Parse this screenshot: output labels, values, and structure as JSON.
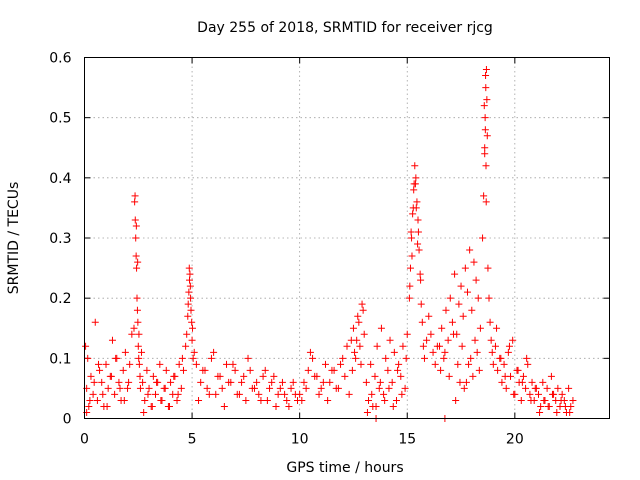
{
  "chart_data": {
    "type": "scatter",
    "title": "Day 255 of 2018, SRMTID for receiver rjcg",
    "xlabel": "GPS time / hours",
    "ylabel": "SRMTID / TECUs",
    "xlim": [
      0,
      24.4
    ],
    "ylim": [
      0,
      0.6
    ],
    "xticks": [
      0,
      5,
      10,
      15,
      20
    ],
    "yticks": [
      0,
      0.1,
      0.2,
      0.3,
      0.4,
      0.5,
      0.6
    ],
    "xtick_labels": [
      "0",
      "5",
      "10",
      "15",
      "20"
    ],
    "ytick_labels": [
      "0",
      "0.1",
      "0.2",
      "0.3",
      "0.4",
      "0.5",
      "0.6"
    ],
    "grid": true,
    "marker": "+",
    "color": "#ff0000",
    "series": [
      {
        "name": "SRMTID",
        "x": [
          0.05,
          0.1,
          0.15,
          0.2,
          0.3,
          0.4,
          0.5,
          0.6,
          0.7,
          0.8,
          0.9,
          1.0,
          1.1,
          1.2,
          1.3,
          1.4,
          1.5,
          1.6,
          1.7,
          1.8,
          1.9,
          2.0,
          2.1,
          2.2,
          0.1,
          0.25,
          0.45,
          0.65,
          0.85,
          1.05,
          1.25,
          1.45,
          1.65,
          1.85,
          2.05,
          2.3,
          2.33,
          2.36,
          2.38,
          2.4,
          2.42,
          2.44,
          2.46,
          2.48,
          2.5,
          2.52,
          2.35,
          2.41,
          2.47,
          2.53,
          2.55,
          2.58,
          2.6,
          2.65,
          2.7,
          2.8,
          2.9,
          3.0,
          3.1,
          3.2,
          3.3,
          3.4,
          3.5,
          3.6,
          3.7,
          3.8,
          3.9,
          4.0,
          4.1,
          4.2,
          4.3,
          4.4,
          4.5,
          4.6,
          2.75,
          2.95,
          3.15,
          3.35,
          3.55,
          3.75,
          3.95,
          4.15,
          4.35,
          4.55,
          4.7,
          4.75,
          4.8,
          4.82,
          4.85,
          4.88,
          4.9,
          4.92,
          4.95,
          4.98,
          5.0,
          5.05,
          4.87,
          4.93,
          5.02,
          5.1,
          5.2,
          5.4,
          5.6,
          5.8,
          6.0,
          6.2,
          6.4,
          6.6,
          6.8,
          7.0,
          7.2,
          7.4,
          7.6,
          7.8,
          8.0,
          8.2,
          8.4,
          8.6,
          8.8,
          9.0,
          9.2,
          9.4,
          9.6,
          9.8,
          5.3,
          5.5,
          5.7,
          5.9,
          6.1,
          6.3,
          6.5,
          6.7,
          6.9,
          7.1,
          7.3,
          7.5,
          7.7,
          7.9,
          8.1,
          8.3,
          8.5,
          8.7,
          8.9,
          9.1,
          9.3,
          9.5,
          9.7,
          9.9,
          10.0,
          10.2,
          10.4,
          10.6,
          10.8,
          11.0,
          11.2,
          11.4,
          11.6,
          11.8,
          12.0,
          12.2,
          10.1,
          10.3,
          10.5,
          10.7,
          10.9,
          11.1,
          11.3,
          11.5,
          11.7,
          11.9,
          12.1,
          12.3,
          12.4,
          12.5,
          12.6,
          12.7,
          12.8,
          12.9,
          13.0,
          12.55,
          12.75,
          12.95,
          12.45,
          12.65,
          12.85,
          13.1,
          13.2,
          13.3,
          13.4,
          13.5,
          13.6,
          13.7,
          13.8,
          13.9,
          14.0,
          14.1,
          14.2,
          14.3,
          14.4,
          14.5,
          14.6,
          14.7,
          14.8,
          14.9,
          13.15,
          13.35,
          13.55,
          13.75,
          13.95,
          14.15,
          14.35,
          14.55,
          14.75,
          14.95,
          15.0,
          15.1,
          15.15,
          15.2,
          15.25,
          15.3,
          15.35,
          15.4,
          15.45,
          15.5,
          15.55,
          15.6,
          15.65,
          15.7,
          15.75,
          15.8,
          15.9,
          16.0,
          16.1,
          16.2,
          16.3,
          16.4,
          15.12,
          15.22,
          15.32,
          15.42,
          15.52,
          15.62,
          15.28,
          15.38,
          15.18,
          15.48,
          16.5,
          16.6,
          16.7,
          16.8,
          16.9,
          17.0,
          17.1,
          17.2,
          17.3,
          17.4,
          17.5,
          17.6,
          17.7,
          17.8,
          17.9,
          18.0,
          18.1,
          18.2,
          18.3,
          18.4,
          16.55,
          16.75,
          16.95,
          17.15,
          17.35,
          17.55,
          17.75,
          17.95,
          18.15,
          18.35,
          17.25,
          17.45,
          17.65,
          17.85,
          18.05,
          18.25,
          18.5,
          18.55,
          18.6,
          18.62,
          18.65,
          18.68,
          18.7,
          18.72,
          18.58,
          18.64,
          18.66,
          18.6,
          18.63,
          18.67,
          18.75,
          18.8,
          18.85,
          18.9,
          18.95,
          19.0,
          19.1,
          19.2,
          19.3,
          19.4,
          19.5,
          19.6,
          19.7,
          19.8,
          19.9,
          20.0,
          20.1,
          20.2,
          20.3,
          20.4,
          20.5,
          20.6,
          20.7,
          20.8,
          20.9,
          21.0,
          19.15,
          19.35,
          19.55,
          19.75,
          19.95,
          20.15,
          20.35,
          20.55,
          20.75,
          20.95,
          21.1,
          21.2,
          21.3,
          21.4,
          21.5,
          21.6,
          21.7,
          21.8,
          21.9,
          22.0,
          22.1,
          22.2,
          22.3,
          22.4,
          22.5,
          22.6,
          22.7,
          21.15,
          21.35,
          21.55,
          21.75,
          21.95,
          22.15,
          22.35,
          22.55,
          13.55,
          16.75
        ],
        "y": [
          0.12,
          0.05,
          0.1,
          0.02,
          0.07,
          0.04,
          0.16,
          0.03,
          0.08,
          0.06,
          0.02,
          0.09,
          0.05,
          0.07,
          0.13,
          0.04,
          0.1,
          0.06,
          0.03,
          0.08,
          0.11,
          0.05,
          0.09,
          0.14,
          0.01,
          0.03,
          0.06,
          0.09,
          0.04,
          0.02,
          0.07,
          0.1,
          0.05,
          0.03,
          0.06,
          0.15,
          0.36,
          0.33,
          0.3,
          0.27,
          0.25,
          0.2,
          0.18,
          0.16,
          0.12,
          0.1,
          0.37,
          0.32,
          0.26,
          0.14,
          0.09,
          0.07,
          0.05,
          0.11,
          0.06,
          0.03,
          0.08,
          0.05,
          0.02,
          0.07,
          0.04,
          0.06,
          0.09,
          0.03,
          0.05,
          0.08,
          0.02,
          0.06,
          0.04,
          0.07,
          0.03,
          0.09,
          0.05,
          0.08,
          0.01,
          0.04,
          0.02,
          0.06,
          0.03,
          0.05,
          0.02,
          0.07,
          0.04,
          0.1,
          0.12,
          0.14,
          0.17,
          0.19,
          0.21,
          0.23,
          0.24,
          0.22,
          0.18,
          0.16,
          0.13,
          0.1,
          0.25,
          0.2,
          0.15,
          0.11,
          0.09,
          0.06,
          0.08,
          0.04,
          0.11,
          0.07,
          0.05,
          0.09,
          0.06,
          0.08,
          0.04,
          0.07,
          0.1,
          0.05,
          0.06,
          0.03,
          0.08,
          0.05,
          0.07,
          0.04,
          0.06,
          0.03,
          0.05,
          0.04,
          0.03,
          0.08,
          0.05,
          0.1,
          0.04,
          0.07,
          0.02,
          0.06,
          0.09,
          0.04,
          0.06,
          0.03,
          0.08,
          0.05,
          0.04,
          0.07,
          0.03,
          0.06,
          0.02,
          0.05,
          0.04,
          0.02,
          0.06,
          0.03,
          0.04,
          0.06,
          0.08,
          0.1,
          0.07,
          0.05,
          0.09,
          0.06,
          0.08,
          0.05,
          0.1,
          0.12,
          0.03,
          0.05,
          0.11,
          0.07,
          0.04,
          0.06,
          0.03,
          0.08,
          0.05,
          0.09,
          0.07,
          0.04,
          0.13,
          0.15,
          0.1,
          0.17,
          0.12,
          0.19,
          0.14,
          0.11,
          0.16,
          0.18,
          0.08,
          0.13,
          0.09,
          0.06,
          0.03,
          0.09,
          0.02,
          0.07,
          0.12,
          0.05,
          0.15,
          0.04,
          0.1,
          0.08,
          0.13,
          0.06,
          0.11,
          0.03,
          0.09,
          0.07,
          0.12,
          0.05,
          0.01,
          0.04,
          0.02,
          0.06,
          0.03,
          0.05,
          0.02,
          0.08,
          0.04,
          0.1,
          0.14,
          0.2,
          0.25,
          0.3,
          0.34,
          0.38,
          0.42,
          0.4,
          0.36,
          0.33,
          0.28,
          0.24,
          0.19,
          0.16,
          0.12,
          0.1,
          0.13,
          0.17,
          0.14,
          0.11,
          0.09,
          0.12,
          0.22,
          0.27,
          0.39,
          0.35,
          0.31,
          0.23,
          0.35,
          0.39,
          0.31,
          0.29,
          0.12,
          0.15,
          0.1,
          0.18,
          0.13,
          0.2,
          0.16,
          0.24,
          0.14,
          0.19,
          0.22,
          0.17,
          0.25,
          0.21,
          0.28,
          0.18,
          0.26,
          0.23,
          0.2,
          0.15,
          0.08,
          0.11,
          0.07,
          0.14,
          0.09,
          0.12,
          0.06,
          0.1,
          0.13,
          0.08,
          0.03,
          0.06,
          0.05,
          0.09,
          0.07,
          0.11,
          0.3,
          0.37,
          0.45,
          0.5,
          0.55,
          0.58,
          0.53,
          0.47,
          0.52,
          0.57,
          0.42,
          0.44,
          0.48,
          0.36,
          0.25,
          0.2,
          0.16,
          0.13,
          0.11,
          0.09,
          0.12,
          0.08,
          0.1,
          0.06,
          0.09,
          0.05,
          0.11,
          0.07,
          0.13,
          0.04,
          0.08,
          0.06,
          0.03,
          0.07,
          0.05,
          0.09,
          0.04,
          0.06,
          0.03,
          0.05,
          0.15,
          0.1,
          0.07,
          0.12,
          0.04,
          0.08,
          0.06,
          0.1,
          0.03,
          0.05,
          0.04,
          0.02,
          0.06,
          0.03,
          0.05,
          0.02,
          0.07,
          0.04,
          0.03,
          0.05,
          0.02,
          0.04,
          0.03,
          0.01,
          0.05,
          0.02,
          0.03,
          0.01,
          0.03,
          0.02,
          0.04,
          0.01,
          0.03,
          0.02,
          0.01,
          0.0,
          0.0
        ]
      }
    ]
  }
}
